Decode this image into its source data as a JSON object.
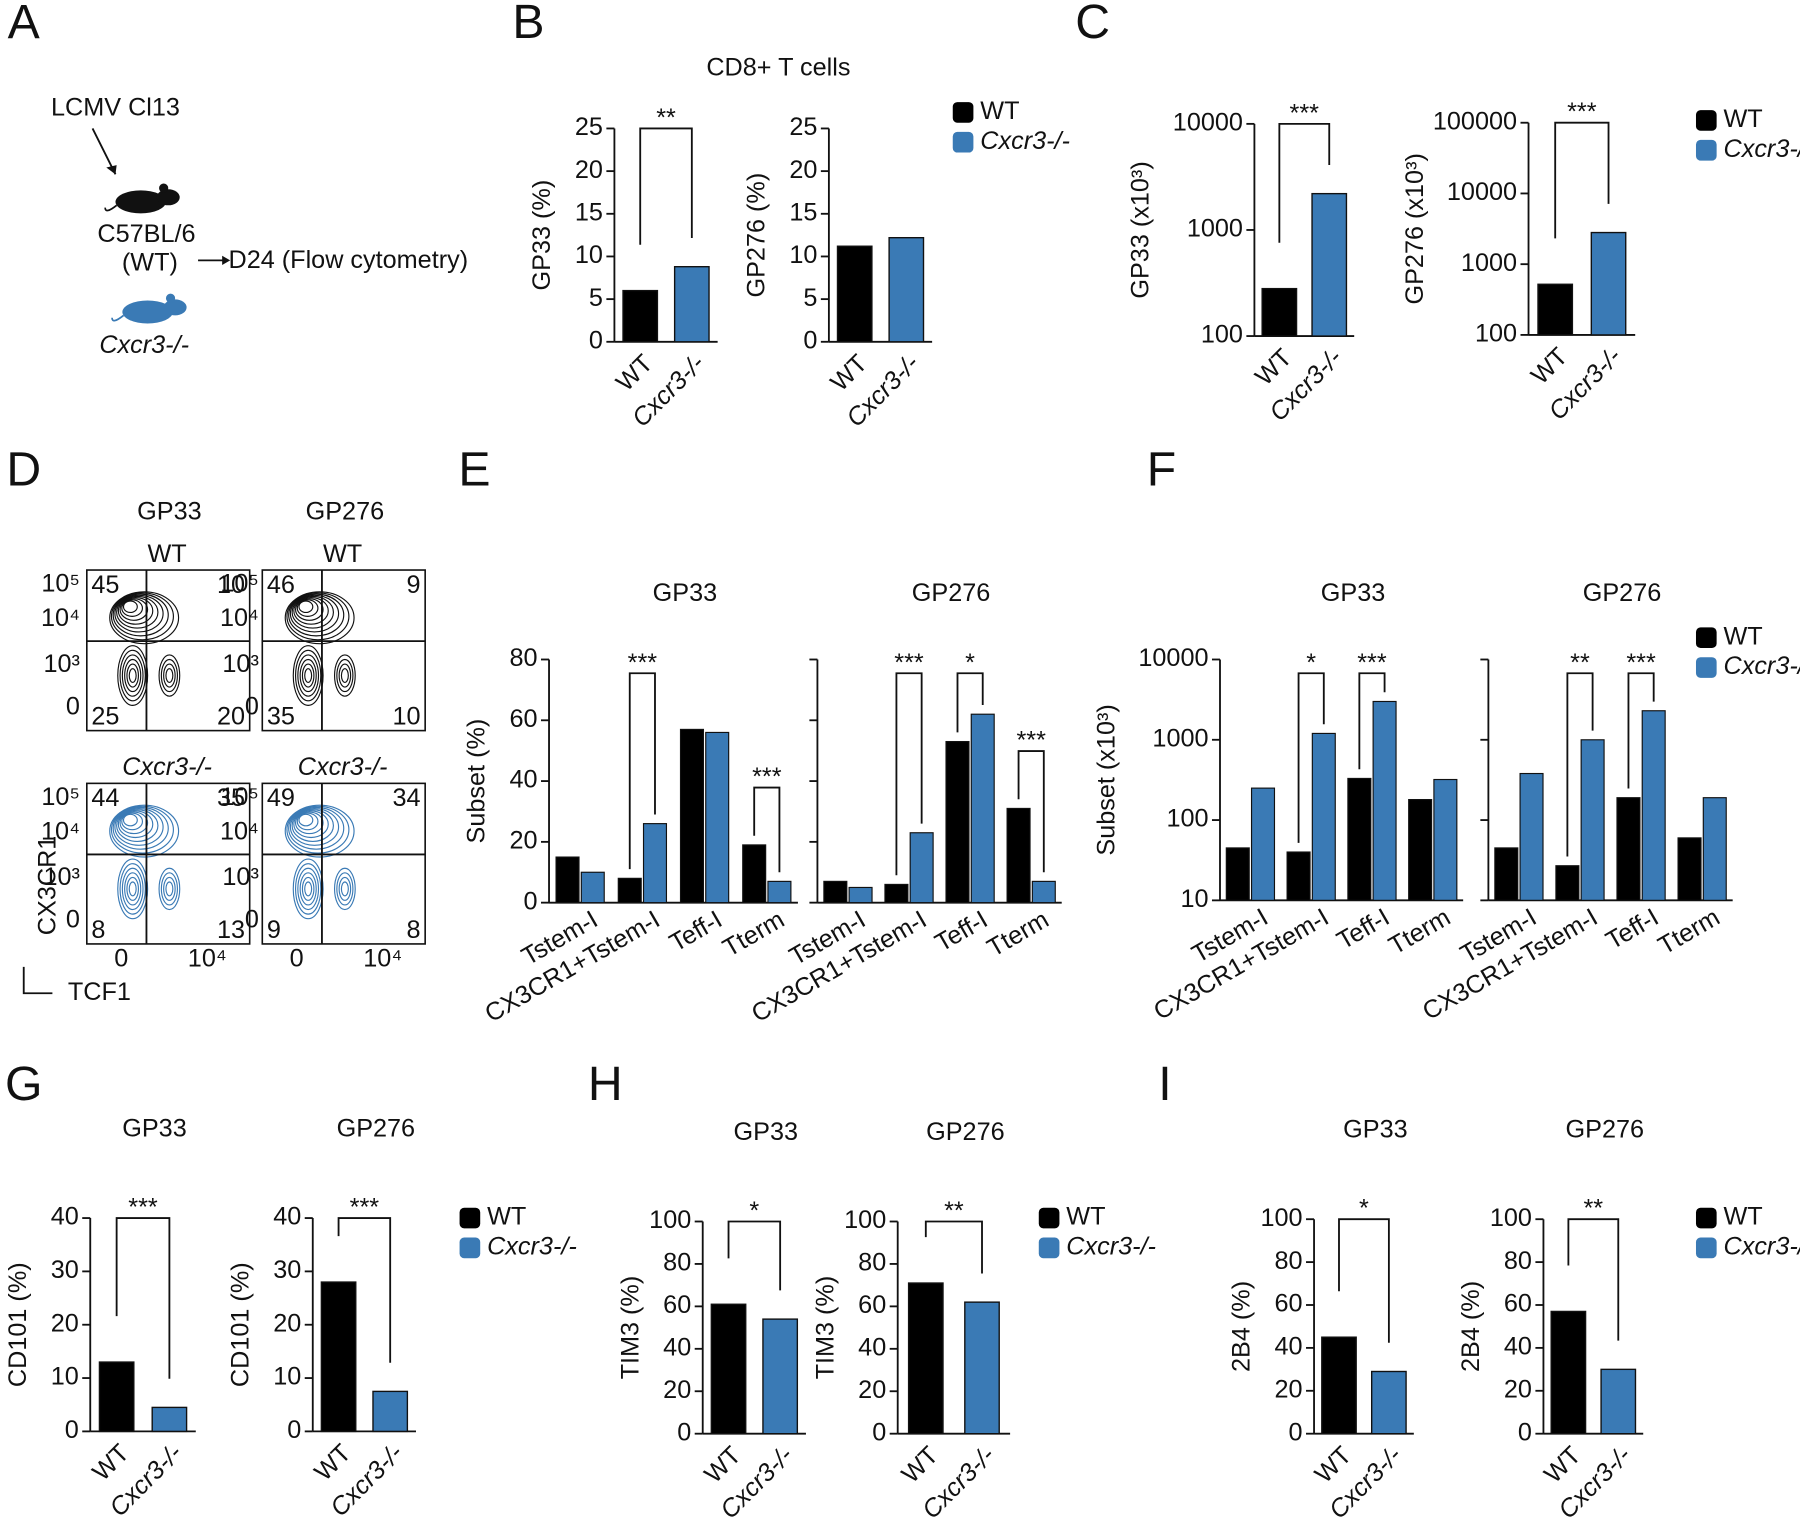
{
  "panel_labels": [
    "A",
    "B",
    "C",
    "D",
    "E",
    "F",
    "G",
    "H",
    "I"
  ],
  "schematic": {
    "infection": "LCMV Cl13",
    "strain": "C57BL/6",
    "strain_note": "(WT)",
    "readout": "D24 (Flow cytometry)",
    "knockout": "Cxcr3-/-"
  },
  "panel_b_title": "CD8+ T cells",
  "flow": {
    "columns": [
      "GP33",
      "GP276"
    ],
    "rows": [
      "WT",
      "Cxcr3-/-"
    ],
    "y_axis_label": "CX3CR1",
    "x_axis_label": "TCF1",
    "yticks": [
      "10⁵",
      "10⁴",
      "10³",
      "0"
    ],
    "xticks": [
      "0",
      "10⁴"
    ],
    "quadrants": [
      [
        [
          45,
          10,
          25,
          20
        ],
        [
          46,
          9,
          35,
          10
        ]
      ],
      [
        [
          44,
          35,
          8,
          13
        ],
        [
          49,
          34,
          9,
          8
        ]
      ]
    ]
  },
  "chart_data": [
    {
      "type": "bar",
      "ylabel": "GP33 (%)",
      "categories": [
        "WT",
        "Cxcr3-/-"
      ],
      "values": [
        6,
        8.8
      ],
      "colors": [
        "#000000",
        "#3a7ab5"
      ],
      "ylim": [
        0,
        25
      ],
      "yticks": [
        0,
        5,
        10,
        15,
        20,
        25
      ],
      "significance": "**"
    },
    {
      "type": "bar",
      "ylabel": "GP276 (%)",
      "categories": [
        "WT",
        "Cxcr3-/-"
      ],
      "values": [
        11.2,
        12.2
      ],
      "colors": [
        "#000000",
        "#3a7ab5"
      ],
      "ylim": [
        0,
        25
      ],
      "yticks": [
        0,
        5,
        10,
        15,
        20,
        25
      ],
      "legend": "right"
    },
    {
      "type": "bar",
      "ylabel": "GP33 (x10³)",
      "categories": [
        "WT",
        "Cxcr3-/-"
      ],
      "values": [
        280,
        2200
      ],
      "colors": [
        "#000000",
        "#3a7ab5"
      ],
      "log": true,
      "ylim": [
        100,
        10000
      ],
      "yticks": [
        100,
        1000,
        10000
      ],
      "significance": "***"
    },
    {
      "type": "bar",
      "ylabel": "GP276 (x10³)",
      "categories": [
        "WT",
        "Cxcr3-/-"
      ],
      "values": [
        520,
        2800
      ],
      "colors": [
        "#000000",
        "#3a7ab5"
      ],
      "log": true,
      "ylim": [
        100,
        100000
      ],
      "yticks": [
        100,
        1000,
        10000,
        100000
      ],
      "significance": "***",
      "legend": "right"
    },
    {
      "type": "grouped_bar",
      "title": "GP33",
      "ylabel": "Subset (%)",
      "categories": [
        "Tstem-I",
        "CX3CR1+Tstem-I",
        "Teff-I",
        "Tterm"
      ],
      "series": [
        {
          "name": "WT",
          "color": "#000000",
          "values": [
            15,
            8,
            57,
            19
          ]
        },
        {
          "name": "Cxcr3-/-",
          "color": "#3a7ab5",
          "values": [
            10,
            26,
            56,
            7
          ]
        }
      ],
      "ylim": [
        0,
        80
      ],
      "yticks": [
        0,
        20,
        40,
        60,
        80
      ],
      "significance": [
        null,
        "***",
        null,
        "***"
      ]
    },
    {
      "type": "grouped_bar",
      "title": "GP276",
      "categories": [
        "Tstem-I",
        "CX3CR1+Tstem-I",
        "Teff-I",
        "Tterm"
      ],
      "series": [
        {
          "name": "WT",
          "color": "#000000",
          "values": [
            7,
            6,
            53,
            31
          ]
        },
        {
          "name": "Cxcr3-/-",
          "color": "#3a7ab5",
          "values": [
            5,
            23,
            62,
            7
          ]
        }
      ],
      "ylim": [
        0,
        80
      ],
      "yticks": [
        0,
        20,
        40,
        60,
        80
      ],
      "show_ytick_labels": false,
      "significance": [
        null,
        "***",
        "*",
        "***"
      ]
    },
    {
      "type": "grouped_bar",
      "title": "GP33",
      "ylabel": "Subset (x10³)",
      "categories": [
        "Tstem-I",
        "CX3CR1+Tstem-I",
        "Teff-I",
        "Tterm"
      ],
      "series": [
        {
          "name": "WT",
          "color": "#000000",
          "values": [
            45,
            40,
            330,
            180
          ]
        },
        {
          "name": "Cxcr3-/-",
          "color": "#3a7ab5",
          "values": [
            250,
            1200,
            3000,
            320
          ]
        }
      ],
      "log": true,
      "ylim": [
        10,
        10000
      ],
      "yticks": [
        10,
        100,
        1000,
        10000
      ],
      "significance": [
        null,
        "*",
        "***",
        null
      ]
    },
    {
      "type": "grouped_bar",
      "title": "GP276",
      "categories": [
        "Tstem-I",
        "CX3CR1+Tstem-I",
        "Teff-I",
        "Tterm"
      ],
      "series": [
        {
          "name": "WT",
          "color": "#000000",
          "values": [
            45,
            27,
            190,
            60
          ]
        },
        {
          "name": "Cxcr3-/-",
          "color": "#3a7ab5",
          "values": [
            380,
            1000,
            2300,
            190
          ]
        }
      ],
      "log": true,
      "ylim": [
        10,
        10000
      ],
      "yticks": [
        10,
        100,
        1000,
        10000
      ],
      "show_ytick_labels": false,
      "significance": [
        null,
        "**",
        "***",
        null
      ],
      "legend": "right"
    },
    {
      "type": "bar",
      "title": "GP33",
      "ylabel": "CD101 (%)",
      "categories": [
        "WT",
        "Cxcr3-/-"
      ],
      "values": [
        13,
        4.5
      ],
      "colors": [
        "#000000",
        "#3a7ab5"
      ],
      "ylim": [
        0,
        40
      ],
      "yticks": [
        0,
        10,
        20,
        30,
        40
      ],
      "significance": "***"
    },
    {
      "type": "bar",
      "title": "GP276",
      "ylabel": "CD101 (%)",
      "categories": [
        "WT",
        "Cxcr3-/-"
      ],
      "values": [
        28,
        7.5
      ],
      "colors": [
        "#000000",
        "#3a7ab5"
      ],
      "ylim": [
        0,
        40
      ],
      "yticks": [
        0,
        10,
        20,
        30,
        40
      ],
      "significance": "***",
      "legend": "right"
    },
    {
      "type": "bar",
      "title": "GP33",
      "ylabel": "TIM3 (%)",
      "categories": [
        "WT",
        "Cxcr3-/-"
      ],
      "values": [
        61,
        54
      ],
      "colors": [
        "#000000",
        "#3a7ab5"
      ],
      "ylim": [
        0,
        100
      ],
      "yticks": [
        0,
        20,
        40,
        60,
        80,
        100
      ],
      "significance": "*"
    },
    {
      "type": "bar",
      "title": "GP276",
      "ylabel": "TIM3 (%)",
      "categories": [
        "WT",
        "Cxcr3-/-"
      ],
      "values": [
        71,
        62
      ],
      "colors": [
        "#000000",
        "#3a7ab5"
      ],
      "ylim": [
        0,
        100
      ],
      "yticks": [
        0,
        20,
        40,
        60,
        80,
        100
      ],
      "significance": "**",
      "legend": "right"
    },
    {
      "type": "bar",
      "title": "GP33",
      "ylabel": "2B4 (%)",
      "categories": [
        "WT",
        "Cxcr3-/-"
      ],
      "values": [
        45,
        29
      ],
      "colors": [
        "#000000",
        "#3a7ab5"
      ],
      "ylim": [
        0,
        100
      ],
      "yticks": [
        0,
        20,
        40,
        60,
        80,
        100
      ],
      "significance": "*"
    },
    {
      "type": "bar",
      "title": "GP276",
      "ylabel": "2B4 (%)",
      "categories": [
        "WT",
        "Cxcr3-/-"
      ],
      "values": [
        57,
        30
      ],
      "colors": [
        "#000000",
        "#3a7ab5"
      ],
      "ylim": [
        0,
        100
      ],
      "yticks": [
        0,
        20,
        40,
        60,
        80,
        100
      ],
      "significance": "**",
      "legend": "right"
    }
  ]
}
